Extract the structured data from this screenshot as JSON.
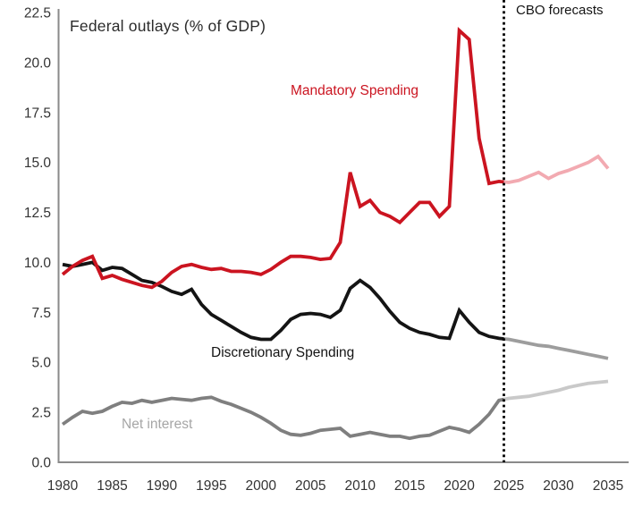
{
  "chart_data": {
    "type": "line",
    "title": "Federal outlays (% of GDP)",
    "divider_label": "CBO forecasts",
    "divider_year": 2024.5,
    "x_start_year": 1980,
    "forecast_start_year": 2025,
    "xlim": [
      1980,
      2035
    ],
    "ylim": [
      0,
      22.5
    ],
    "grid": false,
    "x_ticks": [
      1980,
      1985,
      1990,
      1995,
      2000,
      2005,
      2010,
      2015,
      2020,
      2025,
      2030,
      2035
    ],
    "y_ticks": [
      "22.5",
      "20.0",
      "17.5",
      "15.0",
      "12.5",
      "10.0",
      "7.5",
      "5.0",
      "2.5",
      "0.0"
    ],
    "axis_color": "#8a8a8a",
    "divider_color": "#000000",
    "series": [
      {
        "name": "mandatory-spending",
        "label": "Mandatory Spending",
        "color": "#cb1420",
        "forecast_color": "#f2aab1",
        "label_color": "#cb1420",
        "values": [
          9.4,
          9.8,
          10.1,
          10.3,
          9.2,
          9.35,
          9.15,
          9.0,
          8.85,
          8.75,
          9.05,
          9.5,
          9.8,
          9.9,
          9.75,
          9.65,
          9.7,
          9.55,
          9.55,
          9.5,
          9.4,
          9.65,
          10.0,
          10.3,
          10.3,
          10.25,
          10.15,
          10.2,
          11.0,
          14.5,
          12.8,
          13.1,
          12.5,
          12.3,
          12.0,
          12.5,
          13.0,
          13.0,
          12.3,
          12.8,
          21.6,
          21.15,
          16.2,
          13.95,
          14.05
        ],
        "forecast_values": [
          14.0,
          14.1,
          14.3,
          14.5,
          14.2,
          14.45,
          14.6,
          14.8,
          15.0,
          15.3,
          14.7
        ]
      },
      {
        "name": "discretionary-spending",
        "label": "Discretionary Spending",
        "color": "#141414",
        "forecast_color": "#9d9d9d",
        "label_color": "#141414",
        "values": [
          9.9,
          9.8,
          9.9,
          10.0,
          9.6,
          9.75,
          9.7,
          9.4,
          9.1,
          9.0,
          8.8,
          8.55,
          8.4,
          8.65,
          7.9,
          7.4,
          7.1,
          6.8,
          6.5,
          6.25,
          6.15,
          6.15,
          6.6,
          7.15,
          7.4,
          7.45,
          7.4,
          7.25,
          7.6,
          8.7,
          9.1,
          8.75,
          8.2,
          7.55,
          7.0,
          6.7,
          6.5,
          6.4,
          6.25,
          6.2,
          7.6,
          7.0,
          6.5,
          6.3,
          6.2
        ],
        "forecast_values": [
          6.15,
          6.05,
          5.95,
          5.85,
          5.8,
          5.7,
          5.6,
          5.5,
          5.4,
          5.3,
          5.2
        ]
      },
      {
        "name": "net-interest",
        "label": "Net interest",
        "color": "#7f7f7f",
        "forecast_color": "#c9c9c9",
        "label_color": "#a6a6a6",
        "values": [
          1.9,
          2.25,
          2.55,
          2.45,
          2.55,
          2.8,
          3.0,
          2.95,
          3.1,
          3.0,
          3.1,
          3.2,
          3.15,
          3.1,
          3.2,
          3.25,
          3.05,
          2.9,
          2.7,
          2.5,
          2.25,
          1.95,
          1.6,
          1.4,
          1.35,
          1.45,
          1.6,
          1.65,
          1.7,
          1.3,
          1.4,
          1.5,
          1.4,
          1.3,
          1.3,
          1.2,
          1.3,
          1.35,
          1.55,
          1.75,
          1.65,
          1.5,
          1.9,
          2.4,
          3.1
        ],
        "forecast_values": [
          3.2,
          3.25,
          3.3,
          3.4,
          3.5,
          3.6,
          3.75,
          3.85,
          3.95,
          4.0,
          4.05
        ]
      }
    ]
  }
}
